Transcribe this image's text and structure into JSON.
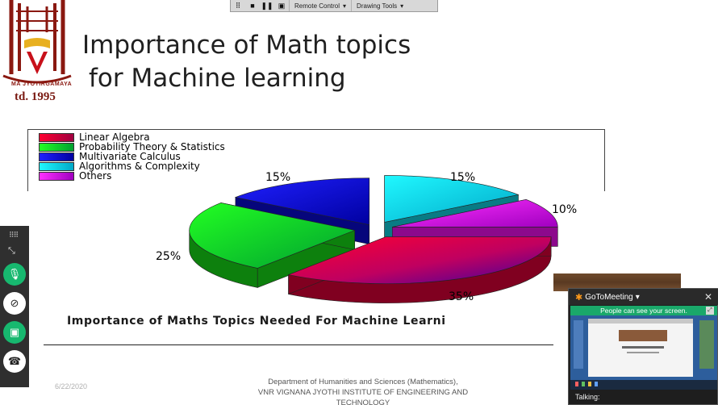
{
  "slide": {
    "title_line1": "Importance of Math topics",
    "title_line2": "for Machine learning",
    "logo_text": "MA JYOTIRGAMAYA",
    "logo_est": "td. 1995",
    "footer_date": "6/22/2020",
    "footer_dept_line1": "Department of Humanities and Sciences (Mathematics),",
    "footer_dept_line2": "VNR VIGNANA JYOTHI INSTITUTE OF ENGINEERING AND TECHNOLOGY"
  },
  "toolbar": {
    "remote_control_label": "Remote Control",
    "drawing_tools_label": "Drawing Tools",
    "icons": [
      "grip-icon",
      "stop-icon",
      "pause-icon",
      "screen-icon",
      "chevron-down-icon"
    ]
  },
  "chart_data": {
    "type": "pie",
    "title": "Importance of Maths Topics Needed For Machine Learni",
    "legend_position": "top-left",
    "slices": [
      {
        "label": "Linear Algebra",
        "value": 35,
        "value_label": "35%",
        "color": "#e8003a"
      },
      {
        "label": "Probability Theory & Statistics",
        "value": 25,
        "value_label": "25%",
        "color": "#18e818"
      },
      {
        "label": "Multivariate Calculus",
        "value": 15,
        "value_label": "15%",
        "color": "#0a0ae0"
      },
      {
        "label": "Algorithms & Complexity",
        "value": 15,
        "value_label": "15%",
        "color": "#10e0f0"
      },
      {
        "label": "Others",
        "value": 10,
        "value_label": "10%",
        "color": "#ff10ff"
      }
    ]
  },
  "controls": {
    "icons": [
      "grip-icon",
      "collapse-icon",
      "microphone-icon",
      "camera-off-icon",
      "screen-share-icon",
      "hang-up-icon"
    ],
    "colors": {
      "mic": "#17b86f",
      "camera": "#ffffff",
      "share": "#17b86f",
      "hangup": "#ffffff"
    }
  },
  "gotomeeting": {
    "brand": "GoToMeeting",
    "banner": "People can see your screen.",
    "talking_label": "Talking:",
    "colors": {
      "banner": "#1aa86a",
      "logo": "#ff9a1a"
    }
  }
}
